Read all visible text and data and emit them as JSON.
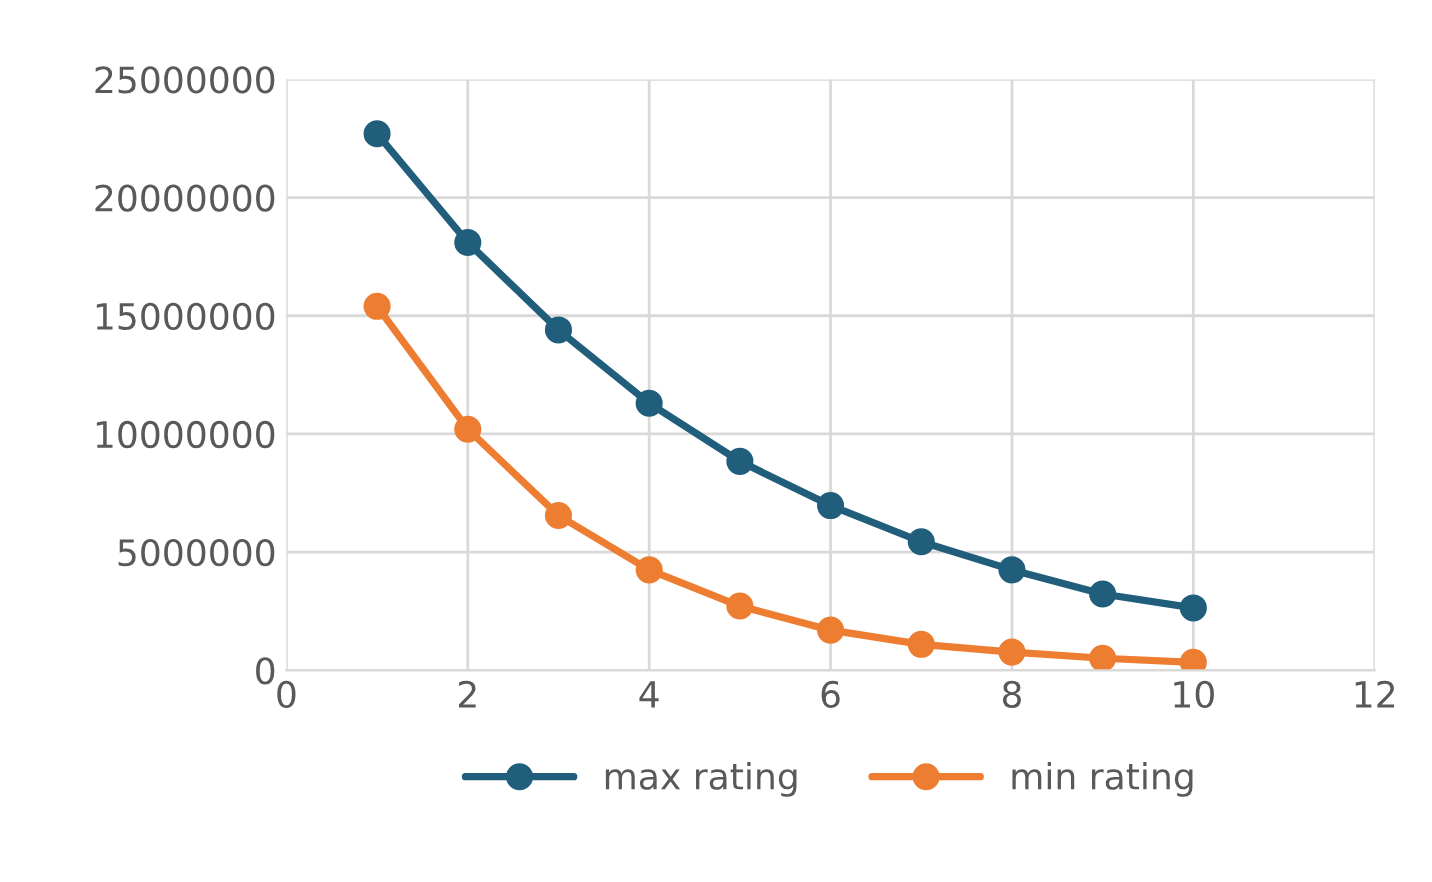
{
  "chart_data": {
    "type": "line",
    "x": [
      1,
      2,
      3,
      4,
      5,
      6,
      7,
      8,
      9,
      10
    ],
    "series": [
      {
        "name": "max rating",
        "color": "#205e7c",
        "values": [
          22700000,
          18100000,
          14400000,
          11300000,
          8840000,
          6970000,
          5440000,
          4250000,
          3230000,
          2640000
        ]
      },
      {
        "name": "min rating",
        "color": "#ed7d31",
        "values": [
          15400000,
          10200000,
          6550000,
          4250000,
          2720000,
          1700000,
          1100000,
          770000,
          510000,
          340000
        ]
      }
    ],
    "xlim": [
      0,
      12
    ],
    "xticks": [
      0,
      2,
      4,
      6,
      8,
      10,
      12
    ],
    "ylim": [
      0,
      25000000
    ],
    "yticks": [
      0,
      5000000,
      10000000,
      15000000,
      20000000,
      25000000
    ],
    "grid": true,
    "legend": "bottom",
    "marker": "circle",
    "line_style": "solid"
  }
}
